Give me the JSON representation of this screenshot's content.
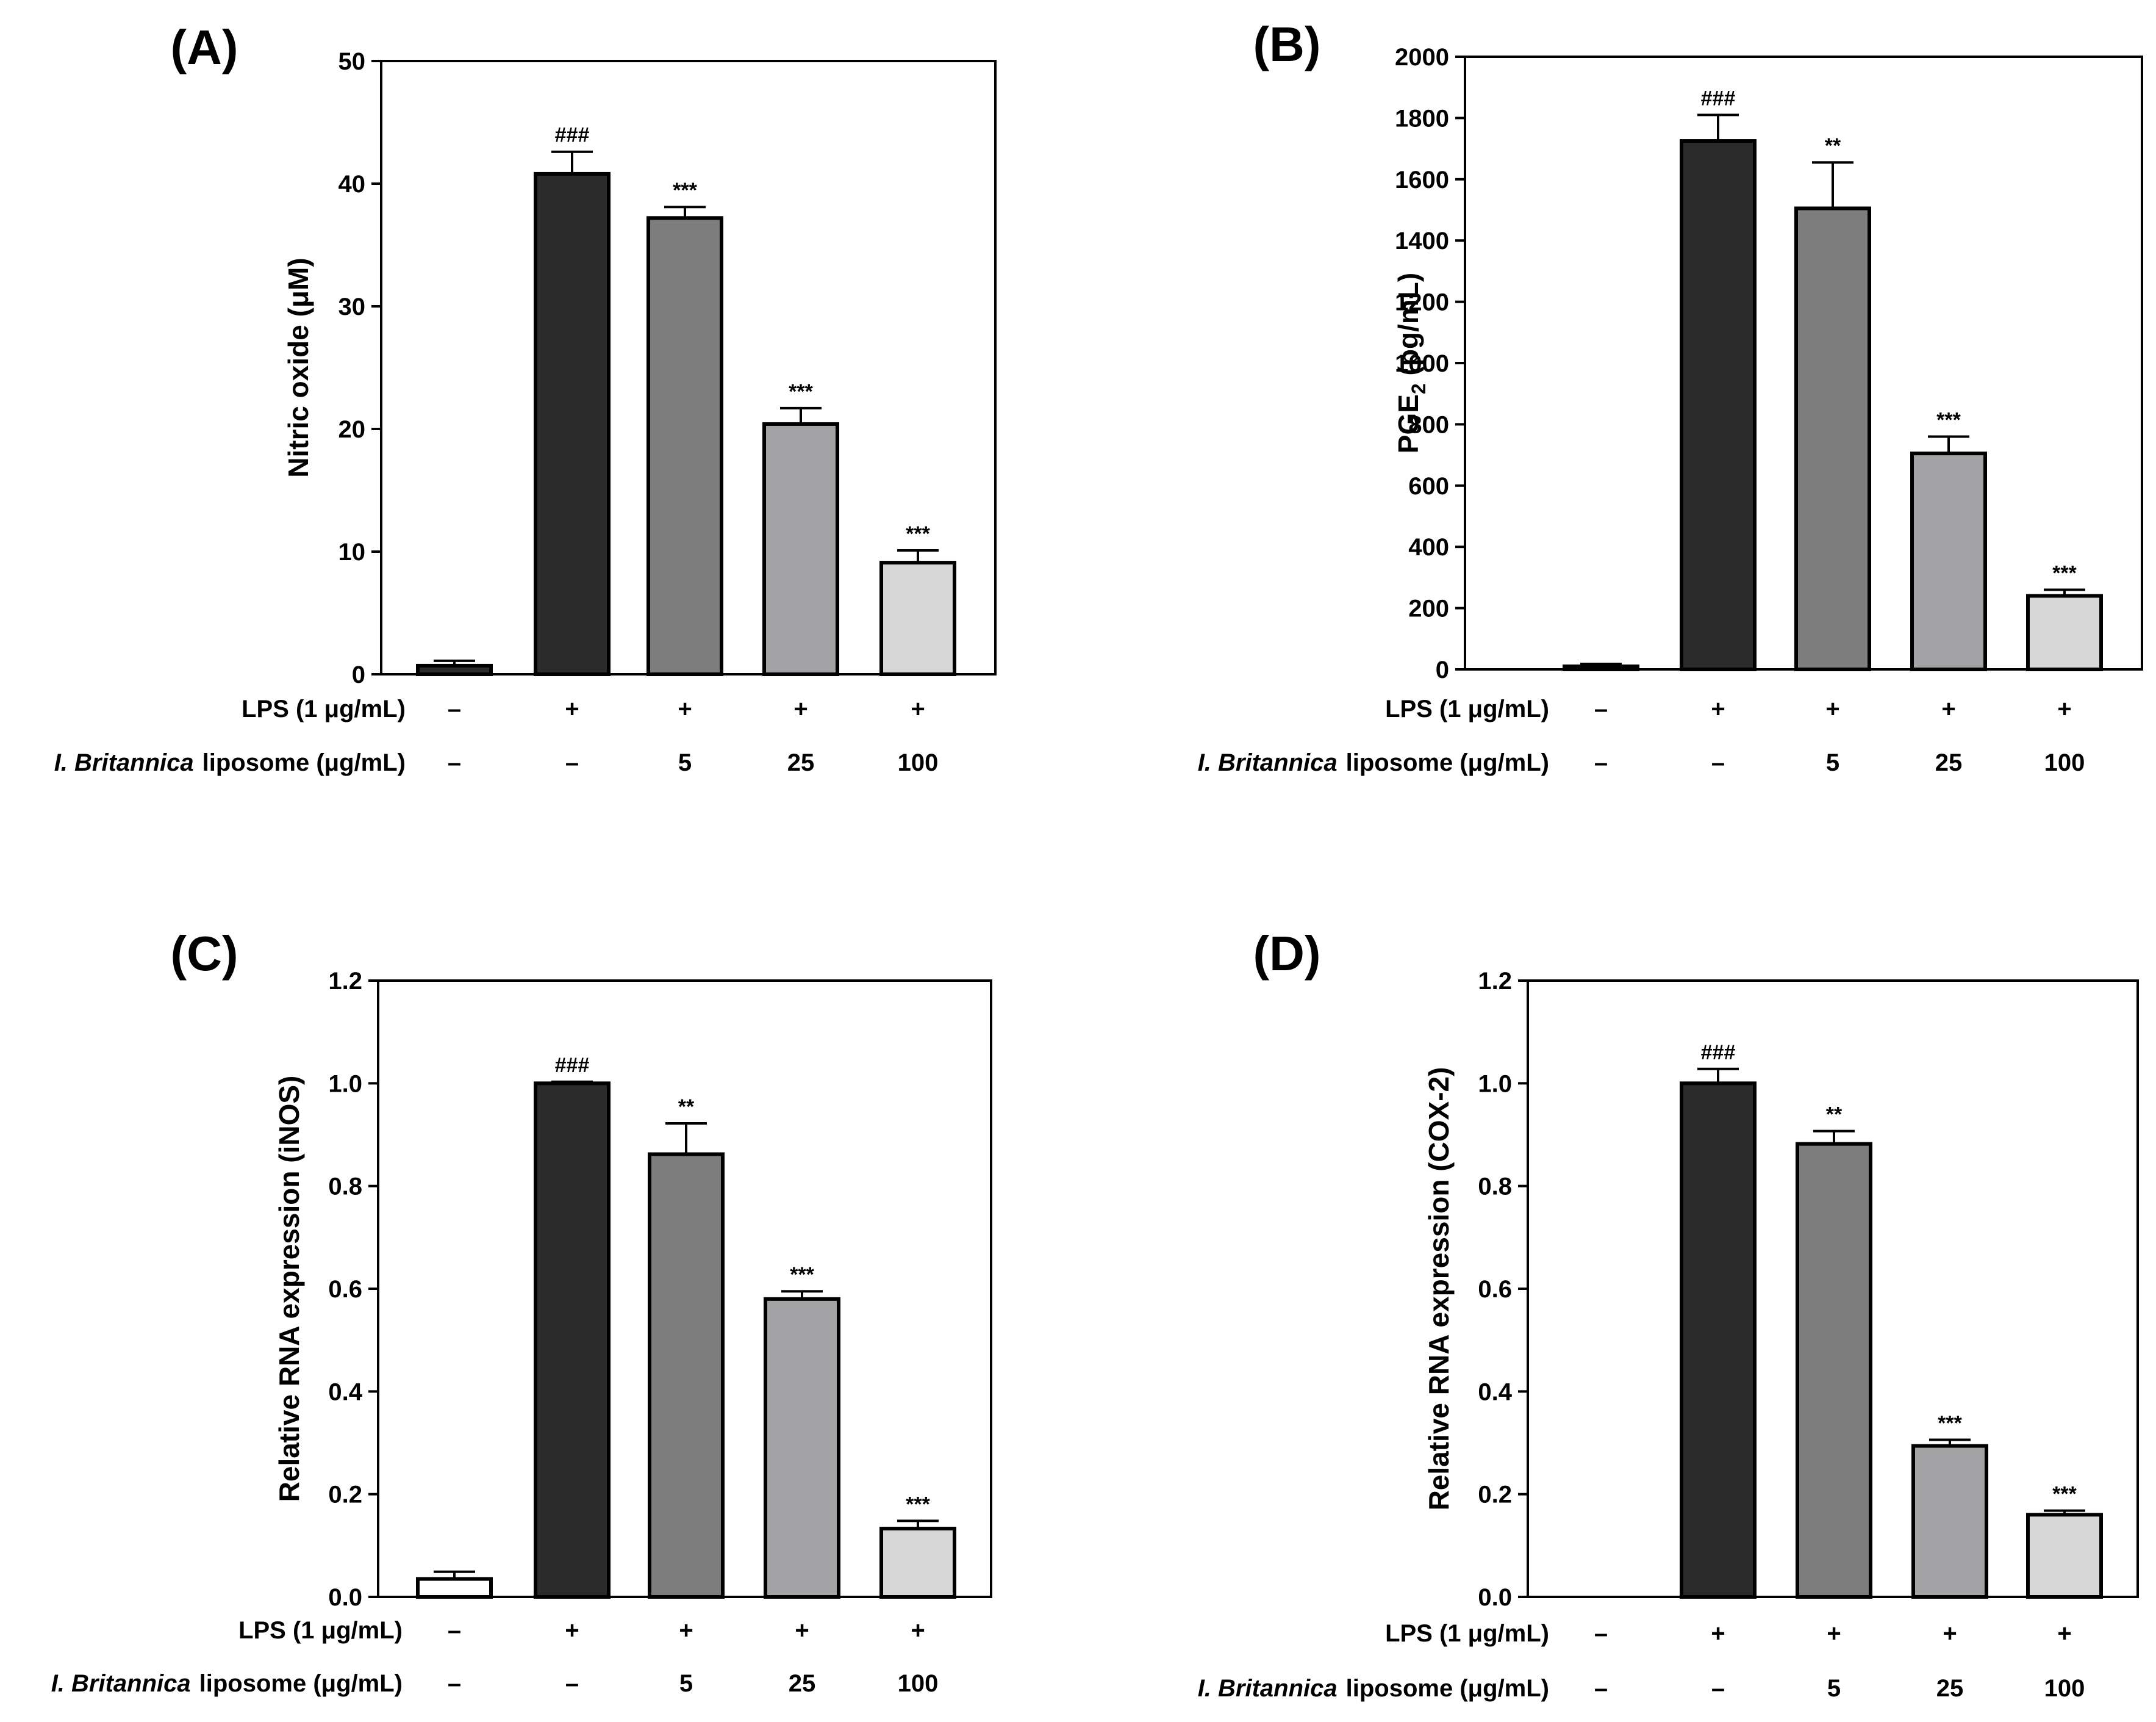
{
  "chart_data": [
    {
      "type": "bar",
      "panel": "(A)",
      "ylabel": "Nitric oxide (μM)",
      "ylim": [
        0,
        50
      ],
      "yticks": [
        "0",
        "10",
        "20",
        "30",
        "40",
        "50"
      ],
      "values": [
        0.7,
        40.8,
        37.2,
        20.4,
        9.1
      ],
      "errors": [
        0.4,
        1.8,
        0.9,
        1.3,
        1.0
      ],
      "annotations": [
        "",
        "###",
        "***",
        "***",
        "***"
      ],
      "colors": [
        "#2b2b2b",
        "#2b2b2b",
        "#7d7d7d",
        "#a3a3a6",
        "#d7d7d7"
      ],
      "rows": [
        {
          "label_italic": "",
          "label": "LPS (1 μg/mL)",
          "values": [
            "–",
            "+",
            "+",
            "+",
            "+"
          ]
        },
        {
          "label_italic": "I. Britannica",
          "label": "liposome (μg/mL)",
          "values": [
            "–",
            "–",
            "5",
            "25",
            "100"
          ]
        }
      ]
    },
    {
      "type": "bar",
      "panel": "(B)",
      "ylabel": "PGE",
      "ylabel_sub": "2",
      "ylabel_suffix": " (pg/mL)",
      "ylim": [
        0,
        2000
      ],
      "yticks": [
        "0",
        "200",
        "400",
        "600",
        "800",
        "1000",
        "1200",
        "1400",
        "1600",
        "1800",
        "2000"
      ],
      "values": [
        10,
        1725,
        1505,
        705,
        240
      ],
      "errors": [
        8,
        85,
        150,
        55,
        20
      ],
      "annotations": [
        "",
        "###",
        "**",
        "***",
        "***"
      ],
      "colors": [
        "#2b2b2b",
        "#2b2b2b",
        "#7d7d7d",
        "#a3a3a6",
        "#d7d7d7"
      ],
      "rows": [
        {
          "label_italic": "",
          "label": "LPS (1 μg/mL)",
          "values": [
            "–",
            "+",
            "+",
            "+",
            "+"
          ]
        },
        {
          "label_italic": "I. Britannica",
          "label": "liposome (μg/mL)",
          "values": [
            "–",
            "–",
            "5",
            "25",
            "100"
          ]
        }
      ]
    },
    {
      "type": "bar",
      "panel": "(C)",
      "ylabel": "Relative RNA expression (iNOS)",
      "ylim": [
        0,
        1.2
      ],
      "yticks": [
        "0.0",
        "0.2",
        "0.4",
        "0.6",
        "0.8",
        "1.0",
        "1.2"
      ],
      "values": [
        0.035,
        1.0,
        0.862,
        0.58,
        0.133
      ],
      "errors": [
        0.014,
        0.003,
        0.06,
        0.015,
        0.015
      ],
      "annotations": [
        "",
        "###",
        "**",
        "***",
        "***"
      ],
      "colors": [
        "#ffffff",
        "#2b2b2b",
        "#7d7d7d",
        "#a3a3a6",
        "#d7d7d7"
      ],
      "rows": [
        {
          "label_italic": "",
          "label": "LPS (1 μg/mL)",
          "values": [
            "–",
            "+",
            "+",
            "+",
            "+"
          ]
        },
        {
          "label_italic": "I. Britannica",
          "label": "liposome (μg/mL)",
          "values": [
            "–",
            "–",
            "5",
            "25",
            "100"
          ]
        }
      ]
    },
    {
      "type": "bar",
      "panel": "(D)",
      "ylabel": "Relative RNA expression (COX-2)",
      "ylim": [
        0,
        1.2
      ],
      "yticks": [
        "0.0",
        "0.2",
        "0.4",
        "0.6",
        "0.8",
        "1.0",
        "1.2"
      ],
      "values": [
        0.0,
        1.0,
        0.882,
        0.294,
        0.16
      ],
      "errors": [
        0,
        0.028,
        0.025,
        0.012,
        0.008
      ],
      "annotations": [
        "",
        "###",
        "**",
        "***",
        "***"
      ],
      "colors": [
        "#ffffff",
        "#2b2b2b",
        "#7d7d7d",
        "#a3a3a6",
        "#d7d7d7"
      ],
      "rows": [
        {
          "label_italic": "",
          "label": "LPS (1 μg/mL)",
          "values": [
            "–",
            "+",
            "+",
            "+",
            "+"
          ]
        },
        {
          "label_italic": "I. Britannica",
          "label": "liposome (μg/mL)",
          "values": [
            "–",
            "–",
            "5",
            "25",
            "100"
          ]
        }
      ]
    }
  ]
}
